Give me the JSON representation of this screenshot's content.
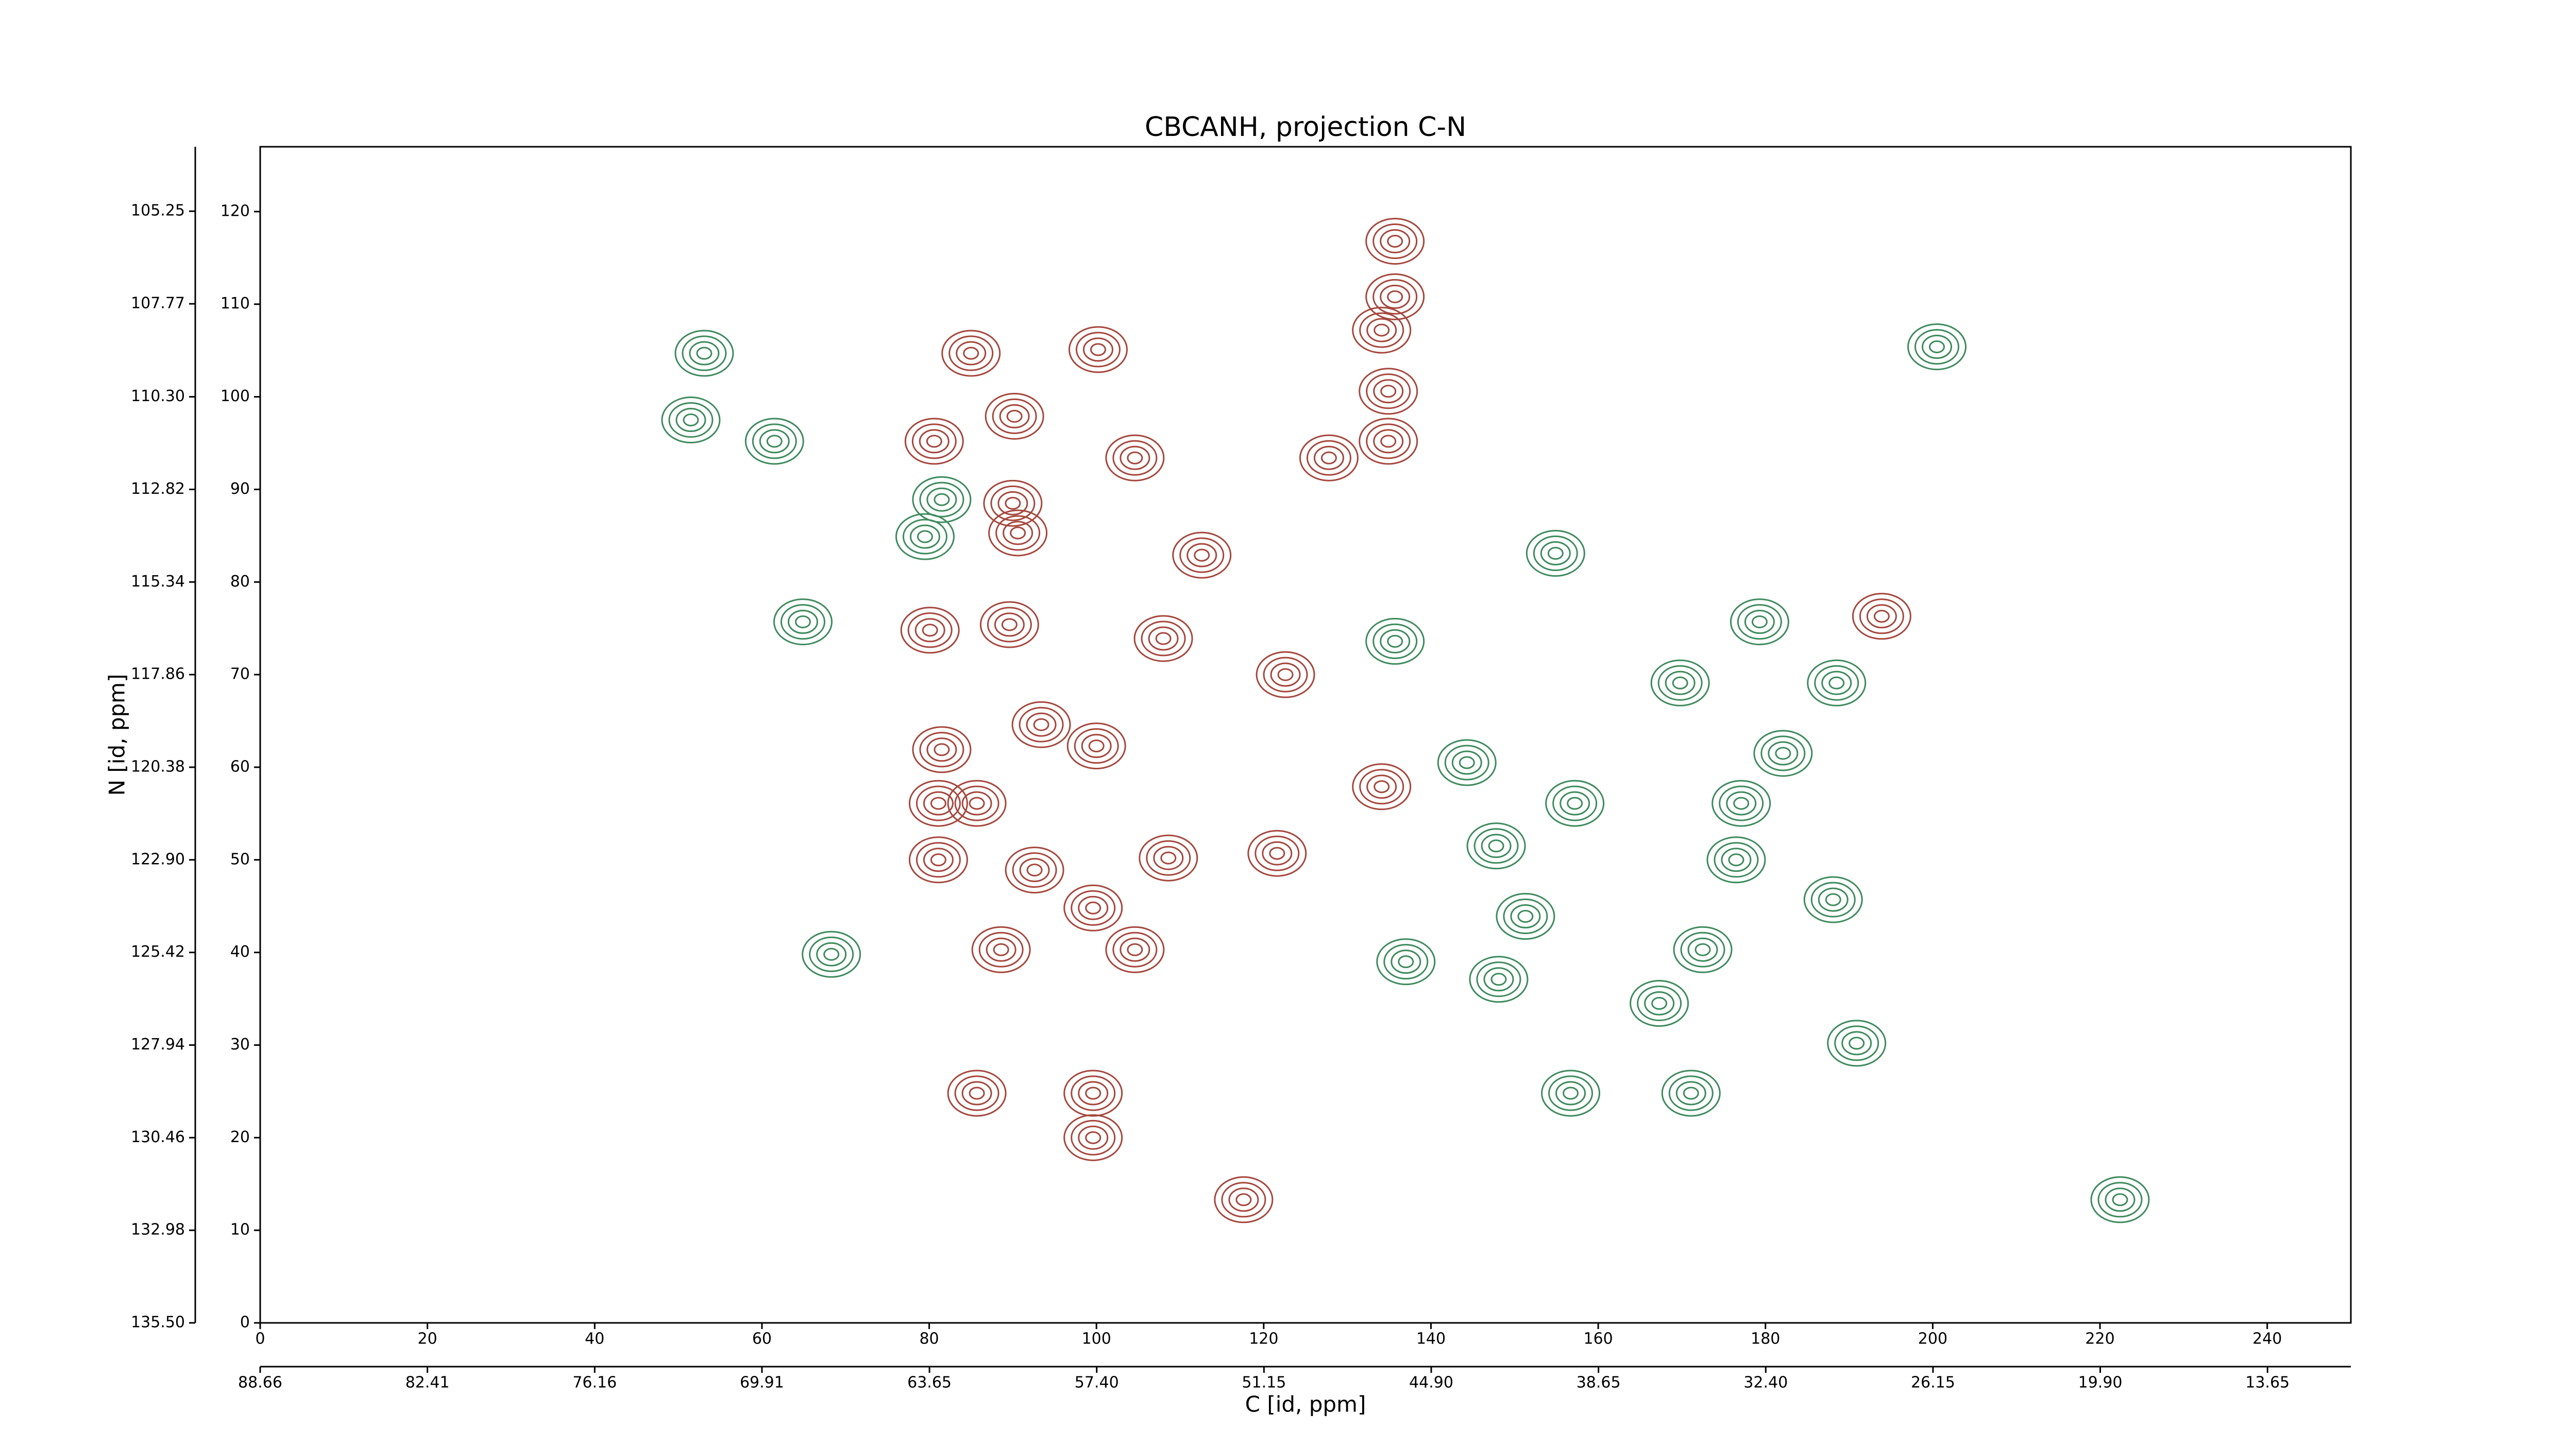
{
  "chart_data": {
    "type": "contour",
    "title": "CBCANH, projection C-N",
    "xlabel": "C [id, ppm]",
    "ylabel": "N [id, ppm]",
    "xlim": [
      0,
      250
    ],
    "ylim": [
      0,
      127
    ],
    "xticks": [
      0,
      20,
      40,
      60,
      80,
      100,
      120,
      140,
      160,
      180,
      200,
      220,
      240
    ],
    "yticks": [
      0,
      10,
      20,
      30,
      40,
      50,
      60,
      70,
      80,
      90,
      100,
      110,
      120
    ],
    "x2lim": [
      88.66,
      10.535
    ],
    "x2ticks": [
      88.66,
      82.41,
      76.16,
      69.91,
      63.65,
      {
        "value": 57.4,
        "label": "57.40"
      },
      51.15,
      {
        "value": 44.9,
        "label": "44.90"
      },
      38.65,
      {
        "value": 32.4,
        "label": "32.40"
      },
      26.15,
      {
        "value": 19.9,
        "label": "19.90"
      },
      13.65
    ],
    "y2lim": [
      135.5,
      103.496
    ],
    "y2ticks": [
      {
        "value": 135.5,
        "label": "135.50"
      },
      132.98,
      130.46,
      127.94,
      125.42,
      {
        "value": 122.9,
        "label": "122.90"
      },
      120.38,
      117.86,
      115.34,
      112.82,
      {
        "value": 110.3,
        "label": "110.30"
      },
      107.77,
      105.25
    ],
    "series": [
      {
        "color": "#a5463c",
        "x": [
          85.7,
          81.1,
          85.7,
          99.6,
          135.7,
          135.7,
          134.1,
          134.9,
          134.9,
          127.8,
          85.0,
          90.2,
          80.6,
          100.2,
          104.6,
          112.6,
          90.0,
          90.6,
          89.6,
          80.1,
          108.0,
          93.4,
          100.0,
          81.5,
          122.6,
          108.6,
          92.6,
          81.1,
          99.6,
          88.6,
          104.6,
          117.6,
          134.1,
          121.6,
          193.9,
          99.6
        ],
        "y": [
          56.1,
          56.1,
          24.8,
          24.8,
          116.8,
          110.8,
          107.2,
          100.6,
          95.2,
          93.4,
          104.7,
          97.9,
          95.2,
          105.1,
          93.4,
          82.9,
          88.5,
          85.3,
          75.4,
          74.8,
          73.9,
          64.6,
          62.3,
          61.9,
          70.0,
          50.2,
          48.9,
          50.0,
          44.8,
          40.3,
          40.3,
          13.3,
          57.9,
          50.7,
          76.3,
          20.0
        ]
      },
      {
        "color": "#3d8a5c",
        "x": [
          64.9,
          157.2,
          171.1,
          156.7,
          176.5,
          182.1,
          177.1,
          144.3,
          135.7,
          154.9,
          137.0,
          151.3,
          147.8,
          188.1,
          188.5,
          200.5,
          53.1,
          61.5,
          51.5,
          79.5,
          81.5,
          68.3,
          222.4,
          190.9,
          179.3,
          169.8,
          172.5,
          148.1,
          167.3
        ],
        "y": [
          75.7,
          56.1,
          24.8,
          24.8,
          50.0,
          61.5,
          56.1,
          60.5,
          73.6,
          83.1,
          39.0,
          43.9,
          51.5,
          45.7,
          69.1,
          105.4,
          104.7,
          95.2,
          97.5,
          84.9,
          88.9,
          39.8,
          13.3,
          30.2,
          75.7,
          69.1,
          40.3,
          37.1,
          34.5
        ]
      }
    ]
  }
}
